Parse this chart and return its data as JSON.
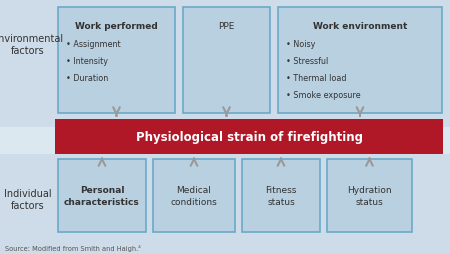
{
  "bg_color": "#dce8f0",
  "env_bg": "#cddce8",
  "ind_bg": "#cddce8",
  "mid_bg": "#dce8f0",
  "box_fill": "#b8d0e0",
  "box_edge": "#6aaac8",
  "red_bar_fill": "#b01828",
  "red_bar_text": "#ffffff",
  "arrow_color": "#999999",
  "label_color": "#333333",
  "source_text": "Source: Modified from Smith and Haigh.⁴",
  "env_label": "Environmental\nfactors",
  "ind_label": "Individual\nfactors",
  "red_bar_text_content": "Physiological strain of firefighting",
  "top_boxes": [
    {
      "title": "Work performed",
      "bullets": [
        "• Assignment",
        "• Intensity",
        "• Duration"
      ],
      "title_bold": true
    },
    {
      "title": "PPE",
      "bullets": [],
      "title_bold": false
    },
    {
      "title": "Work environment",
      "bullets": [
        "• Noisy",
        "• Stressful",
        "• Thermal load",
        "• Smoke exposure"
      ],
      "title_bold": true
    }
  ],
  "bottom_boxes": [
    {
      "title": "Personal\ncharacteristics",
      "bold": true
    },
    {
      "title": "Medical\nconditions",
      "bold": false
    },
    {
      "title": "Fitness\nstatus",
      "bold": false
    },
    {
      "title": "Hydration\nstatus",
      "bold": false
    }
  ],
  "figsize": [
    4.5,
    2.55
  ],
  "dpi": 100
}
